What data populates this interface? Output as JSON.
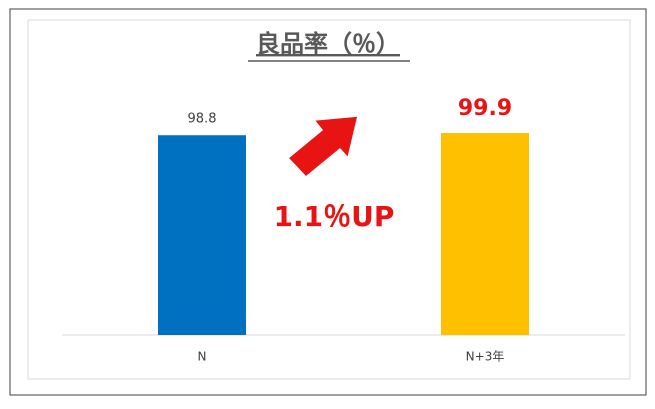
{
  "chart_data": {
    "type": "bar",
    "title": "良品率（％）",
    "categories": [
      "N",
      "N+3年"
    ],
    "values": [
      98.8,
      99.9
    ],
    "colors": [
      "#0070c0",
      "#ffc000"
    ],
    "annotation": "1.1％UP"
  }
}
